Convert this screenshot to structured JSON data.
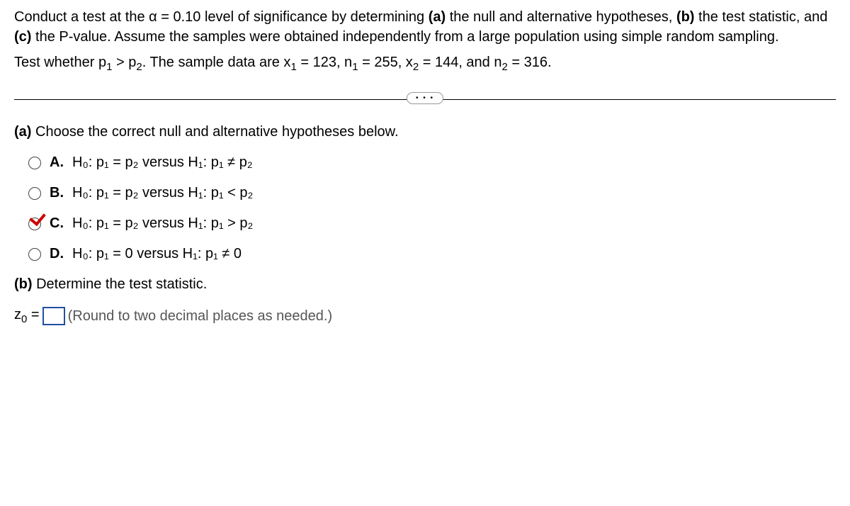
{
  "problem": {
    "line1_pre": "Conduct a test at the α = 0.10 level of significance by determining ",
    "bold_a": "(a)",
    "line1_mid1": " the null and alternative hypotheses, ",
    "bold_b": "(b)",
    "line1_mid2": " the test statistic, and ",
    "bold_c": "(c)",
    "line1_end": " the P-value. Assume the samples were obtained independently from a large population using simple random sampling.",
    "line2_pre": "Test whether p",
    "line2_sub1": "1",
    "line2_mid1": " > p",
    "line2_sub2": "2",
    "line2_mid2": ". The sample data are x",
    "line2_sub3": "1",
    "line2_mid3": " = 123, n",
    "line2_sub4": "1",
    "line2_mid4": " = 255, x",
    "line2_sub5": "2",
    "line2_mid5": " = 144, and n",
    "line2_sub6": "2",
    "line2_mid6": " = 316."
  },
  "more_dots": "• • •",
  "partA": {
    "label": "(a)",
    "text": " Choose the correct null and alternative hypotheses below."
  },
  "choices": {
    "A": {
      "label": "A.",
      "text": "H₀: p₁ = p₂ versus H₁: p₁ ≠ p₂"
    },
    "B": {
      "label": "B.",
      "text": "H₀: p₁ = p₂ versus H₁: p₁ < p₂"
    },
    "C": {
      "label": "C.",
      "text": "H₀: p₁ = p₂ versus H₁: p₁ > p₂"
    },
    "D": {
      "label": "D.",
      "text": "H₀: p₁ = 0 versus H₁: p₁ ≠ 0"
    }
  },
  "partB": {
    "label": "(b)",
    "text": " Determine the test statistic."
  },
  "answer": {
    "z_label_pre": "z",
    "z_label_sub": "0",
    "equals": " = ",
    "instruction": " (Round to two decimal places as needed.)"
  }
}
